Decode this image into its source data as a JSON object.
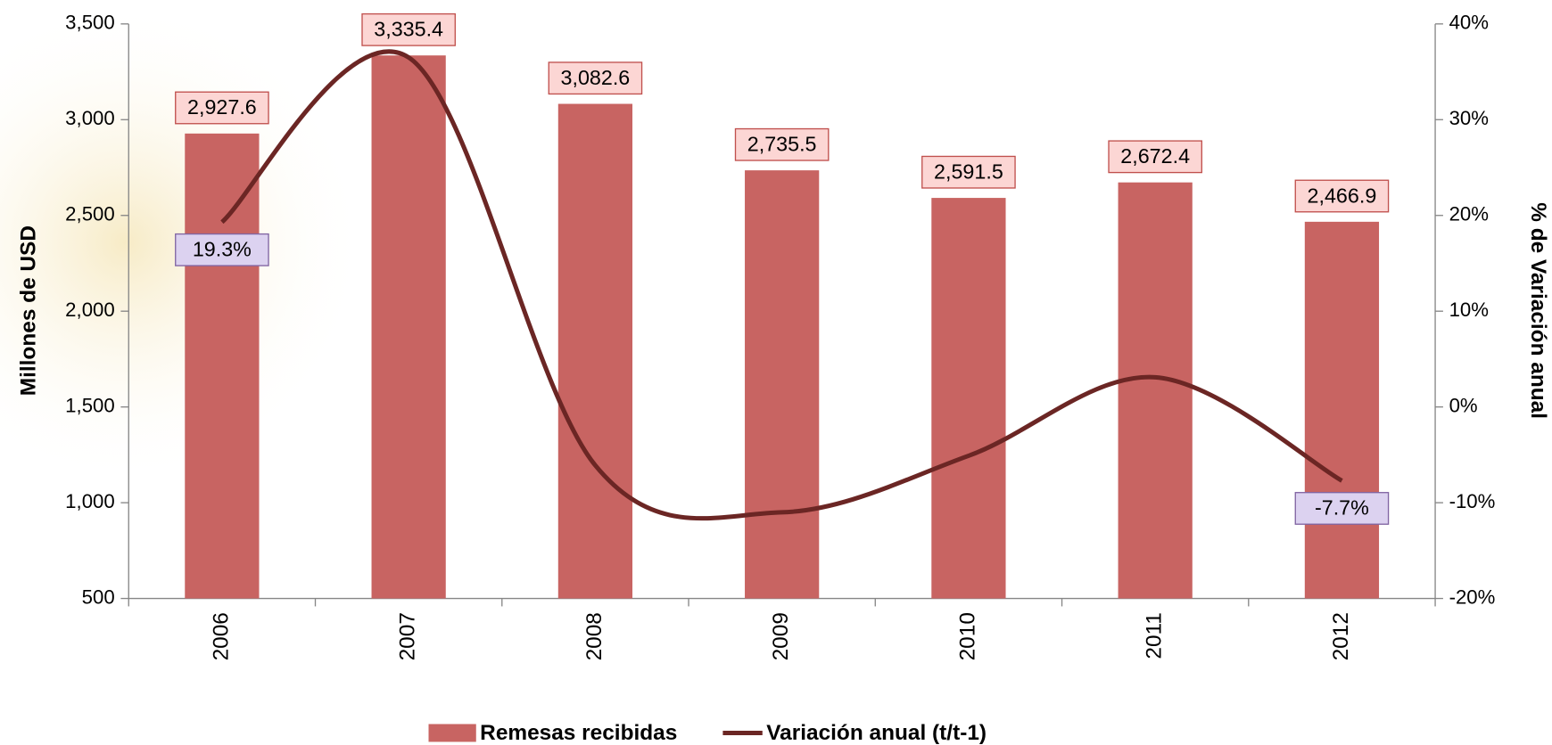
{
  "chart_data": {
    "type": "bar-line",
    "categories": [
      "2006",
      "2007",
      "2008",
      "2009",
      "2010",
      "2011",
      "2012"
    ],
    "y_label": "Millones de USD",
    "y2_label": "% de Variación anual",
    "ylim": [
      500,
      3500
    ],
    "yticks": [
      {
        "value": 500,
        "label": "500"
      },
      {
        "value": 1000,
        "label": "1,000"
      },
      {
        "value": 1500,
        "label": "1,500"
      },
      {
        "value": 2000,
        "label": "2,000"
      },
      {
        "value": 2500,
        "label": "2,500"
      },
      {
        "value": 3000,
        "label": "3,000"
      },
      {
        "value": 3500,
        "label": "3,500"
      }
    ],
    "y2lim": [
      -20,
      40
    ],
    "y2ticks": [
      {
        "value": -20,
        "label": "-20%"
      },
      {
        "value": -10,
        "label": "-10%"
      },
      {
        "value": 0,
        "label": "0%"
      },
      {
        "value": 10,
        "label": "10%"
      },
      {
        "value": 20,
        "label": "20%"
      },
      {
        "value": 30,
        "label": "30%"
      },
      {
        "value": 40,
        "label": "40%"
      }
    ],
    "series": [
      {
        "name": "Remesas recibidas",
        "type": "bar",
        "color": "#c86462",
        "values": [
          2927.6,
          3335.4,
          3082.6,
          2735.5,
          2591.5,
          2672.4,
          2466.9
        ],
        "value_labels": [
          "2,927.6",
          "3,335.4",
          "3,082.6",
          "2,735.5",
          "2,591.5",
          "2,672.4",
          "2,466.9"
        ]
      },
      {
        "name": "Variación anual (t/t-1)",
        "type": "line",
        "axis": "y2",
        "color": "#6b2624",
        "values": [
          19.3,
          36.5,
          -6.1,
          -11.0,
          -5.1,
          3.1,
          -7.7
        ],
        "value_labels": [
          "19.3%",
          null,
          null,
          null,
          null,
          null,
          "-7.7%"
        ]
      }
    ]
  }
}
